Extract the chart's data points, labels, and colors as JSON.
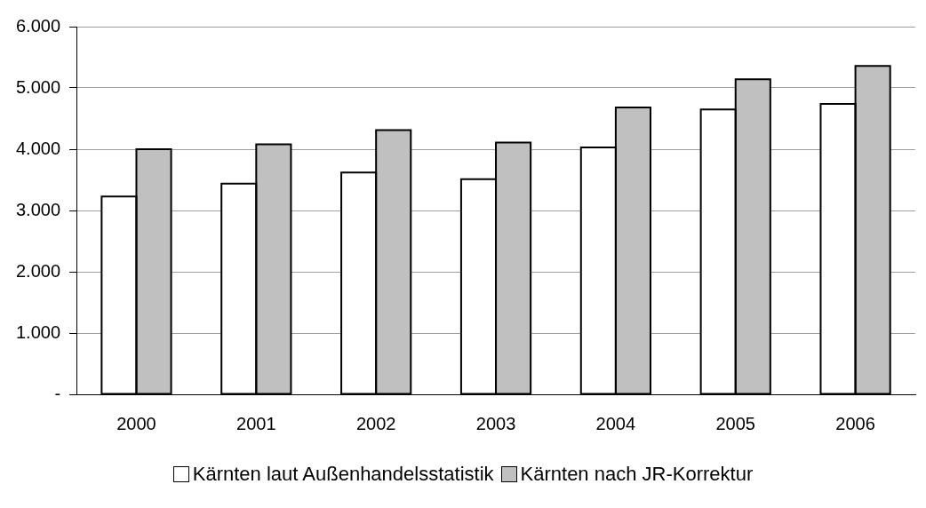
{
  "chart_data": {
    "type": "bar",
    "categories": [
      "2000",
      "2001",
      "2002",
      "2003",
      "2004",
      "2005",
      "2006"
    ],
    "series": [
      {
        "name": "Kärnten laut Außenhandelsstatistik",
        "color": "#ffffff",
        "values": [
          3230,
          3440,
          3620,
          3510,
          4030,
          4650,
          4740
        ]
      },
      {
        "name": "Kärnten nach JR-Korrektur",
        "color": "#c0c0c0",
        "values": [
          4000,
          4080,
          4310,
          4110,
          4680,
          5140,
          5360
        ]
      }
    ],
    "ylim": [
      0,
      6000
    ],
    "yticks": [
      {
        "value": 0,
        "label": "-"
      },
      {
        "value": 1000,
        "label": "1.000"
      },
      {
        "value": 2000,
        "label": "2.000"
      },
      {
        "value": 3000,
        "label": "3.000"
      },
      {
        "value": 4000,
        "label": "4.000"
      },
      {
        "value": 5000,
        "label": "5.000"
      },
      {
        "value": 6000,
        "label": "6.000"
      }
    ],
    "grid": "y",
    "legend": "bottom"
  }
}
